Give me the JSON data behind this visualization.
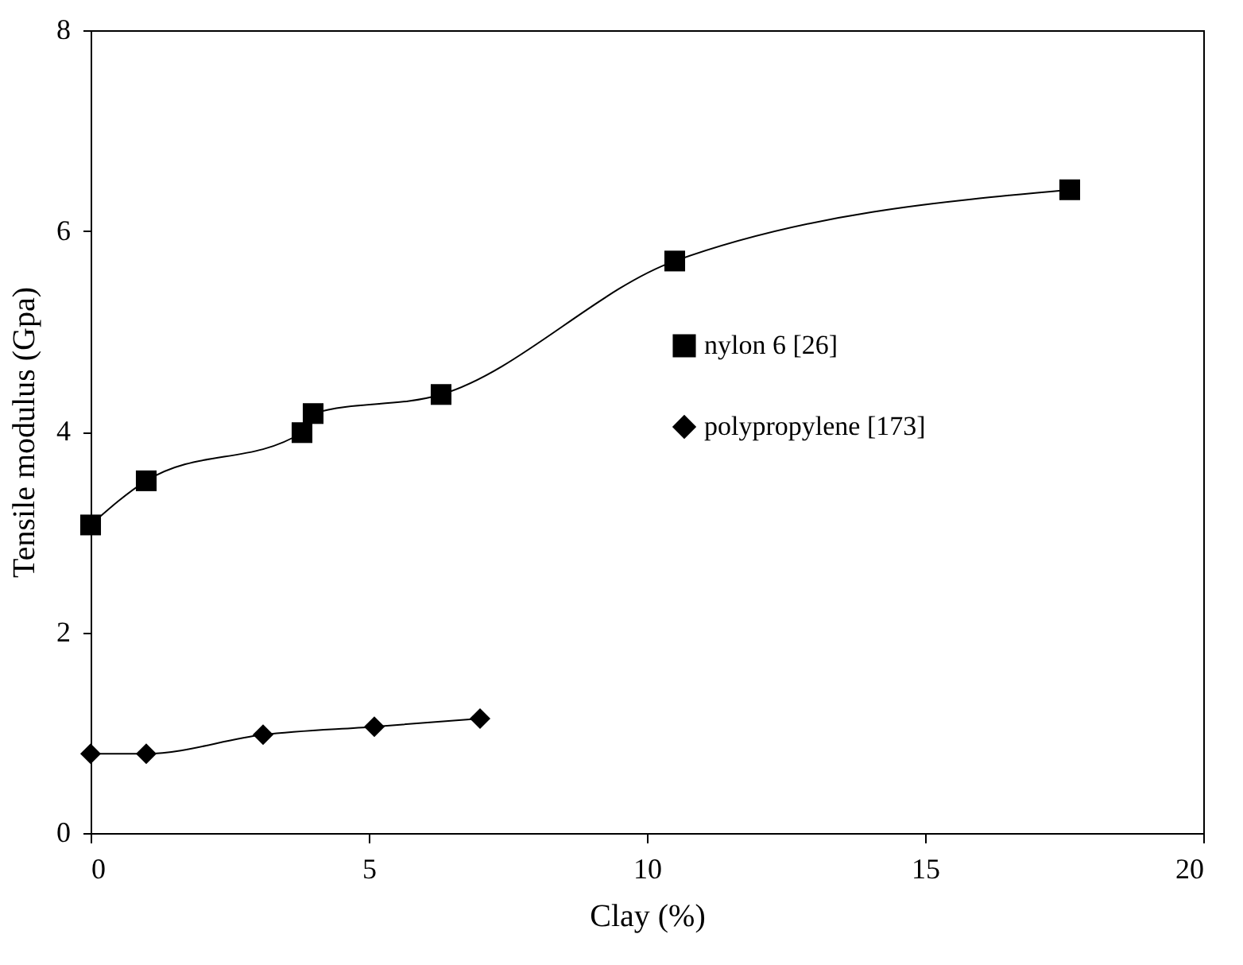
{
  "chart_data": {
    "type": "line",
    "xlabel": "Clay (%)",
    "ylabel": "Tensile modulus (Gpa)",
    "xlim": [
      0,
      20
    ],
    "ylim": [
      0,
      8
    ],
    "xticks": [
      0,
      5,
      10,
      15,
      20
    ],
    "yticks": [
      0,
      2,
      4,
      6,
      8
    ],
    "grid": false,
    "legend": "right",
    "series": [
      {
        "name": "nylon 6 [26]",
        "color": "#000000",
        "marker": "square",
        "x": [
          0,
          1,
          3.8,
          4,
          6.3,
          10.5,
          17.6
        ],
        "values": [
          3.07,
          3.51,
          3.99,
          4.18,
          4.37,
          5.7,
          6.41
        ]
      },
      {
        "name": "polypropylene [173]",
        "color": "#000000",
        "marker": "diamond",
        "x": [
          0,
          1,
          3.1,
          5.1,
          7
        ],
        "values": [
          0.79,
          0.79,
          0.98,
          1.06,
          1.14
        ]
      }
    ]
  }
}
